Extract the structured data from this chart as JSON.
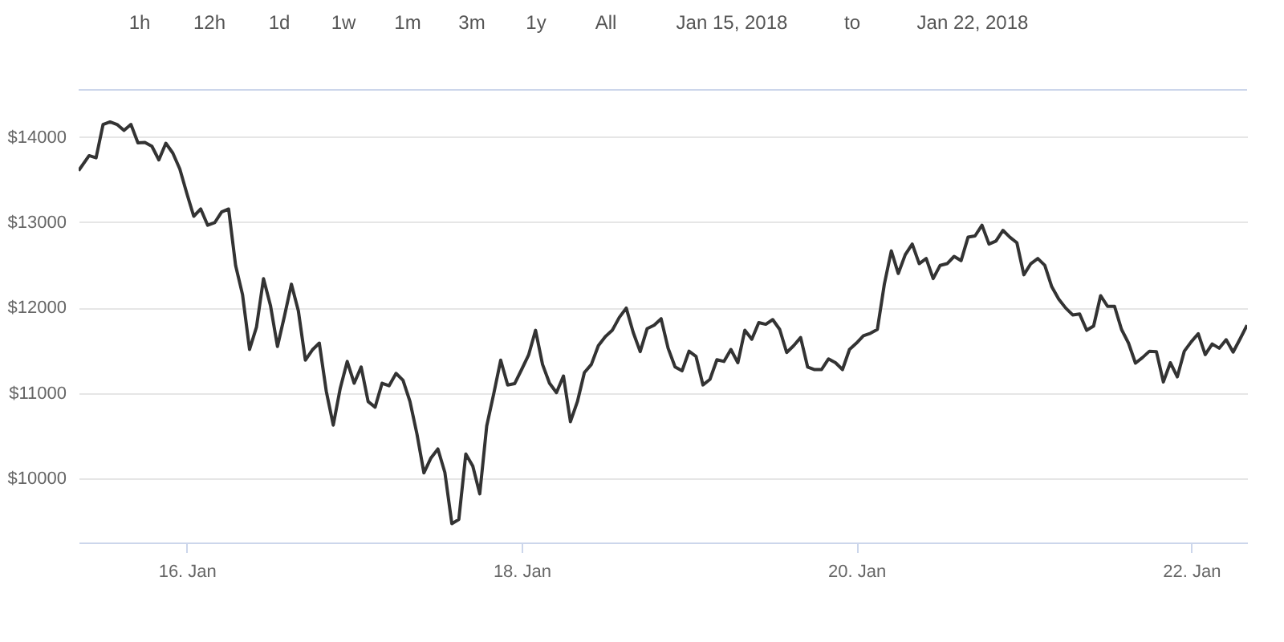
{
  "chart_data": {
    "type": "line",
    "annotations": [
      "1h",
      "12h",
      "1d",
      "1w",
      "1m",
      "3m",
      "1y",
      "All",
      "Jan 15, 2018",
      "to",
      "Jan 22, 2018"
    ],
    "series": [
      {
        "color": "#333333",
        "x": [
          "2018-01-15T08:30",
          "2018-01-15T10:00",
          "2018-01-15T11:00",
          "2018-01-15T12:00",
          "2018-01-15T13:00",
          "2018-01-15T14:00",
          "2018-01-15T15:00",
          "2018-01-15T16:00",
          "2018-01-15T17:00",
          "2018-01-15T18:00",
          "2018-01-15T19:00",
          "2018-01-15T20:00",
          "2018-01-15T21:00",
          "2018-01-15T22:00",
          "2018-01-15T23:00",
          "2018-01-16T00:00",
          "2018-01-16T01:00",
          "2018-01-16T02:00",
          "2018-01-16T03:00",
          "2018-01-16T04:00",
          "2018-01-16T05:00",
          "2018-01-16T06:00",
          "2018-01-16T07:00",
          "2018-01-16T08:00",
          "2018-01-16T09:00",
          "2018-01-16T10:00",
          "2018-01-16T11:00",
          "2018-01-16T12:00",
          "2018-01-16T13:00",
          "2018-01-16T14:00",
          "2018-01-16T15:00",
          "2018-01-16T16:00",
          "2018-01-16T17:00",
          "2018-01-16T18:00",
          "2018-01-16T19:00",
          "2018-01-16T20:00",
          "2018-01-16T21:00",
          "2018-01-16T22:00",
          "2018-01-16T23:00",
          "2018-01-17T00:00",
          "2018-01-17T01:00",
          "2018-01-17T02:00",
          "2018-01-17T03:00",
          "2018-01-17T04:00",
          "2018-01-17T05:00",
          "2018-01-17T06:00",
          "2018-01-17T07:00",
          "2018-01-17T08:00",
          "2018-01-17T09:00",
          "2018-01-17T10:00",
          "2018-01-17T11:00",
          "2018-01-17T12:00",
          "2018-01-17T13:00",
          "2018-01-17T14:00",
          "2018-01-17T15:00",
          "2018-01-17T16:00",
          "2018-01-17T17:00",
          "2018-01-17T18:00",
          "2018-01-17T19:00",
          "2018-01-17T20:00",
          "2018-01-17T21:00",
          "2018-01-17T22:00",
          "2018-01-17T23:00",
          "2018-01-18T00:00",
          "2018-01-18T01:00",
          "2018-01-18T02:00",
          "2018-01-18T03:00",
          "2018-01-18T04:00",
          "2018-01-18T05:00",
          "2018-01-18T06:00",
          "2018-01-18T07:00",
          "2018-01-18T08:00",
          "2018-01-18T09:00",
          "2018-01-18T10:00",
          "2018-01-18T11:00",
          "2018-01-18T12:00",
          "2018-01-18T13:00",
          "2018-01-18T14:00",
          "2018-01-18T15:00",
          "2018-01-18T16:00",
          "2018-01-18T17:00",
          "2018-01-18T18:00",
          "2018-01-18T19:00",
          "2018-01-18T20:00",
          "2018-01-18T21:00",
          "2018-01-18T22:00",
          "2018-01-18T23:00",
          "2018-01-19T00:00",
          "2018-01-19T01:00",
          "2018-01-19T02:00",
          "2018-01-19T03:00",
          "2018-01-19T04:00",
          "2018-01-19T05:00",
          "2018-01-19T06:00",
          "2018-01-19T07:00",
          "2018-01-19T08:00",
          "2018-01-19T09:00",
          "2018-01-19T10:00",
          "2018-01-19T11:00",
          "2018-01-19T12:00",
          "2018-01-19T13:00",
          "2018-01-19T14:00",
          "2018-01-19T15:00",
          "2018-01-19T16:00",
          "2018-01-19T17:00",
          "2018-01-19T18:00",
          "2018-01-19T19:00",
          "2018-01-19T20:00",
          "2018-01-19T21:00",
          "2018-01-19T22:00",
          "2018-01-19T23:00",
          "2018-01-20T00:00",
          "2018-01-20T01:00",
          "2018-01-20T02:00",
          "2018-01-20T03:00",
          "2018-01-20T04:00",
          "2018-01-20T05:00",
          "2018-01-20T06:00",
          "2018-01-20T07:00",
          "2018-01-20T08:00",
          "2018-01-20T09:00",
          "2018-01-20T10:00",
          "2018-01-20T11:00",
          "2018-01-20T12:00",
          "2018-01-20T13:00",
          "2018-01-20T14:00",
          "2018-01-20T15:00",
          "2018-01-20T16:00",
          "2018-01-20T17:00",
          "2018-01-20T18:00",
          "2018-01-20T19:00",
          "2018-01-20T20:00",
          "2018-01-20T21:00",
          "2018-01-20T22:00",
          "2018-01-20T23:00",
          "2018-01-21T00:00",
          "2018-01-21T01:00",
          "2018-01-21T02:00",
          "2018-01-21T03:00",
          "2018-01-21T04:00",
          "2018-01-21T05:00",
          "2018-01-21T06:00",
          "2018-01-21T07:00",
          "2018-01-21T08:00",
          "2018-01-21T09:00",
          "2018-01-21T10:00",
          "2018-01-21T11:00",
          "2018-01-21T12:00",
          "2018-01-21T13:00",
          "2018-01-21T14:00",
          "2018-01-21T15:00",
          "2018-01-21T16:00",
          "2018-01-21T17:00",
          "2018-01-21T18:00",
          "2018-01-21T19:00",
          "2018-01-21T20:00",
          "2018-01-21T21:00",
          "2018-01-21T22:00",
          "2018-01-21T23:00",
          "2018-01-22T00:00",
          "2018-01-22T01:00",
          "2018-01-22T02:00",
          "2018-01-22T03:00",
          "2018-01-22T04:00",
          "2018-01-22T05:00",
          "2018-01-22T06:00",
          "2018-01-22T07:00",
          "2018-01-22T08:00"
        ],
        "values": [
          13605,
          13780,
          13755,
          14145,
          14175,
          14145,
          14075,
          14145,
          13930,
          13935,
          13890,
          13730,
          13925,
          13810,
          13625,
          13340,
          13070,
          13155,
          12965,
          12995,
          13120,
          13155,
          12495,
          12150,
          11510,
          11775,
          12340,
          12025,
          11545,
          11900,
          12275,
          11960,
          11385,
          11505,
          11585,
          11020,
          10625,
          11055,
          11370,
          11115,
          11305,
          10900,
          10835,
          11115,
          11085,
          11230,
          11150,
          10900,
          10520,
          10065,
          10240,
          10345,
          10070,
          9470,
          9520,
          10285,
          10145,
          9820,
          10615,
          10990,
          11385,
          11095,
          11110,
          11275,
          11445,
          11735,
          11335,
          11115,
          11005,
          11200,
          10665,
          10900,
          11240,
          11335,
          11555,
          11660,
          11735,
          11885,
          11995,
          11710,
          11485,
          11755,
          11795,
          11870,
          11525,
          11305,
          11260,
          11490,
          11430,
          11095,
          11160,
          11390,
          11370,
          11510,
          11355,
          11735,
          11630,
          11825,
          11805,
          11860,
          11745,
          11475,
          11555,
          11650,
          11305,
          11275,
          11275,
          11400,
          11355,
          11275,
          11510,
          11585,
          11670,
          11700,
          11745,
          12275,
          12665,
          12400,
          12620,
          12745,
          12515,
          12575,
          12340,
          12495,
          12515,
          12600,
          12550,
          12825,
          12840,
          12965,
          12745,
          12780,
          12905,
          12825,
          12760,
          12385,
          12515,
          12575,
          12495,
          12245,
          12100,
          11995,
          11915,
          11925,
          11735,
          11785,
          12140,
          12015,
          12015,
          11745,
          11585,
          11350,
          11415,
          11490,
          11485,
          11130,
          11355,
          11190,
          11490,
          11600,
          11695,
          11450,
          11575,
          11525,
          11625,
          11480,
          11635,
          11795
        ]
      }
    ],
    "xlim": [
      "2018-01-15T08:30",
      "2018-01-22T08:00"
    ],
    "xticks": [
      {
        "value": "2018-01-16",
        "label": "16. Jan"
      },
      {
        "value": "2018-01-18",
        "label": "18. Jan"
      },
      {
        "value": "2018-01-20",
        "label": "20. Jan"
      },
      {
        "value": "2018-01-22",
        "label": "22. Jan"
      }
    ],
    "ylim": [
      9250,
      14550
    ],
    "yticks": [
      {
        "value": 10000,
        "label": "$10000"
      },
      {
        "value": 11000,
        "label": "$11000"
      },
      {
        "value": 12000,
        "label": "$12000"
      },
      {
        "value": 13000,
        "label": "$13000"
      },
      {
        "value": 14000,
        "label": "$14000"
      }
    ],
    "grid": "y",
    "marker": "none",
    "line_style": "solid"
  }
}
